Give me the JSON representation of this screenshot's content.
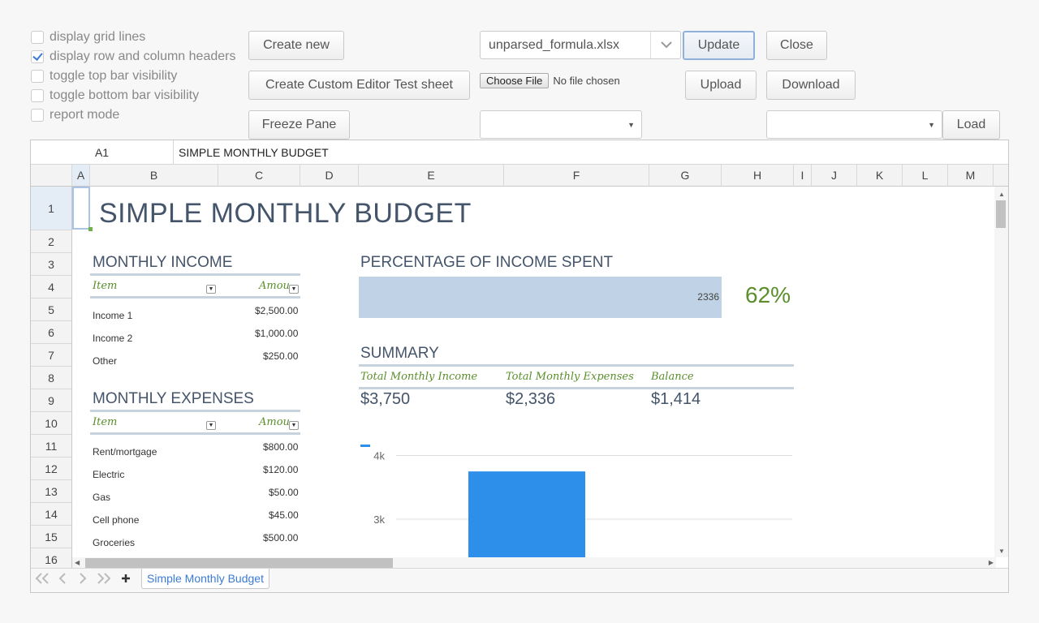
{
  "options": [
    {
      "label": "display grid lines",
      "checked": false
    },
    {
      "label": "display row and column headers",
      "checked": true
    },
    {
      "label": "toggle top bar visibility",
      "checked": false
    },
    {
      "label": "toggle bottom bar visibility",
      "checked": false
    },
    {
      "label": "report mode",
      "checked": false
    }
  ],
  "toolbar": {
    "create_new": "Create new",
    "create_custom": "Create Custom Editor Test sheet",
    "freeze_pane": "Freeze Pane",
    "file_combo_value": "unparsed_formula.xlsx",
    "update": "Update",
    "close": "Close",
    "choose_file": "Choose File",
    "no_file": "No file chosen",
    "upload": "Upload",
    "download": "Download",
    "load": "Load"
  },
  "sheet": {
    "name_box": "A1",
    "formula": "SIMPLE MONTHLY BUDGET",
    "columns": [
      "A",
      "B",
      "C",
      "D",
      "E",
      "F",
      "G",
      "H",
      "I",
      "J",
      "K",
      "L",
      "M"
    ],
    "rows": [
      "1",
      "2",
      "3",
      "4",
      "5",
      "6",
      "7",
      "8",
      "9",
      "10",
      "11",
      "12",
      "13",
      "14",
      "15",
      "16"
    ],
    "title": "SIMPLE MONTHLY BUDGET",
    "income": {
      "heading": "MONTHLY INCOME",
      "col_item": "Item",
      "col_amount": "Amou",
      "items": [
        {
          "item": "Income 1",
          "amount": "$2,500.00"
        },
        {
          "item": "Income 2",
          "amount": "$1,000.00"
        },
        {
          "item": "Other",
          "amount": "$250.00"
        }
      ]
    },
    "expenses": {
      "heading": "MONTHLY EXPENSES",
      "col_item": "Item",
      "col_amount": "Amou",
      "items": [
        {
          "item": "Rent/mortgage",
          "amount": "$800.00"
        },
        {
          "item": "Electric",
          "amount": "$120.00"
        },
        {
          "item": "Gas",
          "amount": "$50.00"
        },
        {
          "item": "Cell phone",
          "amount": "$45.00"
        },
        {
          "item": "Groceries",
          "amount": "$500.00"
        }
      ]
    },
    "percentage": {
      "heading": "PERCENTAGE OF INCOME SPENT",
      "bar_value": "2336",
      "percent": "62%",
      "bar_fill": 1.0
    },
    "summary": {
      "heading": "SUMMARY",
      "labels": [
        "Total Monthly Income",
        "Total Monthly Expenses",
        "Balance"
      ],
      "values": [
        "$3,750",
        "$2,336",
        "$1,414"
      ]
    },
    "tab_name": "Simple Monthly Budget"
  },
  "chart_data": {
    "type": "bar",
    "categories": [
      ""
    ],
    "values": [
      3750
    ],
    "ylim": [
      2400,
      4300
    ],
    "yticks": [
      {
        "value": 4000,
        "label": "4k"
      },
      {
        "value": 3000,
        "label": "3k"
      }
    ],
    "bar_color": "#2e8fea",
    "title": "",
    "xlabel": "",
    "ylabel": ""
  },
  "colors": {
    "accent": "#3a7bd5",
    "heading": "#44546a",
    "table_header": "#5a8f2b",
    "percent": "#5a8f2b",
    "bar_bg": "#c0d3e6"
  }
}
